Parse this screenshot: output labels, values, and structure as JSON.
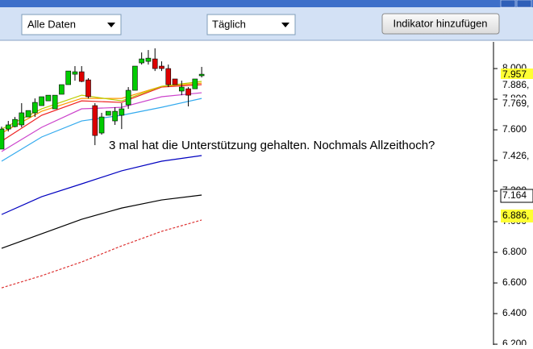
{
  "toolbar": {
    "range": "Alle Daten",
    "interval": "Täglich",
    "button": "Indikator hinzufügen"
  },
  "chart_data": {
    "type": "candlestick",
    "annotation": "3 mal hat die Unterstützung gehalten. Nochmals Allzeithoch?",
    "open": [
      7474,
      7605,
      7621,
      7632,
      7684,
      7711,
      7758,
      7789,
      7737,
      7832,
      7895,
      7963,
      7979,
      7926,
      7758,
      7579,
      7695,
      7658,
      7695,
      7763,
      7858,
      8037,
      8047,
      8063,
      8016,
      8000,
      7932,
      7853,
      7868,
      7868,
      7953
    ],
    "high": [
      7621,
      7658,
      7684,
      7774,
      7726,
      7805,
      7816,
      7826,
      7826,
      7895,
      7984,
      8016,
      8016,
      7937,
      7774,
      7711,
      7721,
      7747,
      7774,
      7879,
      8016,
      8105,
      8121,
      8132,
      8047,
      8026,
      7932,
      7921,
      7879,
      7932,
      8011
    ],
    "low": [
      7474,
      7589,
      7616,
      7616,
      7684,
      7684,
      7758,
      7789,
      7737,
      7832,
      7895,
      7921,
      7911,
      7805,
      7500,
      7568,
      7695,
      7632,
      7605,
      7737,
      7858,
      8026,
      8026,
      7984,
      7984,
      7879,
      7895,
      7826,
      7753,
      7868,
      7942
    ],
    "close": [
      7605,
      7632,
      7668,
      7711,
      7726,
      7779,
      7816,
      7826,
      7826,
      7895,
      7984,
      7979,
      7916,
      7816,
      7563,
      7684,
      7721,
      7721,
      7737,
      7858,
      8016,
      8063,
      8068,
      8000,
      8000,
      7895,
      7895,
      7879,
      7826,
      7932,
      7963
    ],
    "up_color": "#00cc00",
    "down_color": "#dd0000",
    "ylim": [
      6195,
      8174
    ],
    "yticks": [
      {
        "value": 8000,
        "label": "8.000"
      },
      {
        "value": 7800,
        "label": "7.800"
      },
      {
        "value": 7600,
        "label": "7.600"
      },
      {
        "value": 7400,
        "label": "7.400"
      },
      {
        "value": 7200,
        "label": "7.200"
      },
      {
        "value": 7000,
        "label": "7.000"
      },
      {
        "value": 6800,
        "label": "6.800"
      },
      {
        "value": 6600,
        "label": "6.600"
      },
      {
        "value": 6400,
        "label": "6.400"
      },
      {
        "value": 6200,
        "label": "6.200"
      }
    ],
    "moving_averages": {
      "x": [
        0,
        6,
        12,
        18,
        24,
        30
      ],
      "series": [
        {
          "color": "#0000c0",
          "values": [
            7047,
            7163,
            7247,
            7332,
            7395,
            7432
          ]
        },
        {
          "color": "#000000",
          "values": [
            6826,
            6921,
            7016,
            7089,
            7142,
            7174
          ]
        },
        {
          "color": "#dd3333",
          "dashed": true,
          "values": [
            6568,
            6647,
            6737,
            6842,
            6937,
            7011
          ]
        },
        {
          "color": "#33aaee",
          "values": [
            7395,
            7553,
            7658,
            7695,
            7747,
            7805
          ]
        },
        {
          "color": "#cc44cc",
          "values": [
            7458,
            7616,
            7737,
            7747,
            7816,
            7842
          ]
        },
        {
          "color": "#ee2222",
          "values": [
            7526,
            7695,
            7789,
            7779,
            7879,
            7895
          ]
        },
        {
          "color": "#ff9900",
          "values": [
            7579,
            7721,
            7805,
            7805,
            7884,
            7905
          ]
        },
        {
          "color": "#bbcc00",
          "values": [
            7605,
            7737,
            7826,
            7789,
            7884,
            7916
          ]
        }
      ]
    },
    "price_labels": [
      {
        "text": "7.957",
        "color": "#000000",
        "background": "#ffff33"
      },
      {
        "text": "7.886,",
        "color": "#dd0000",
        "background": "#ffffff"
      },
      {
        "text": "7.769,",
        "color": "#3366cc",
        "background": "#ffffff"
      },
      {
        "text": "7.426,",
        "color": "#0000cc",
        "background": "#ffffff"
      },
      {
        "text": "7.164",
        "color": "#000000",
        "background": "#ffffff"
      },
      {
        "text": "6.886,",
        "color": "#cc3300",
        "background": "#ffff33"
      }
    ]
  }
}
